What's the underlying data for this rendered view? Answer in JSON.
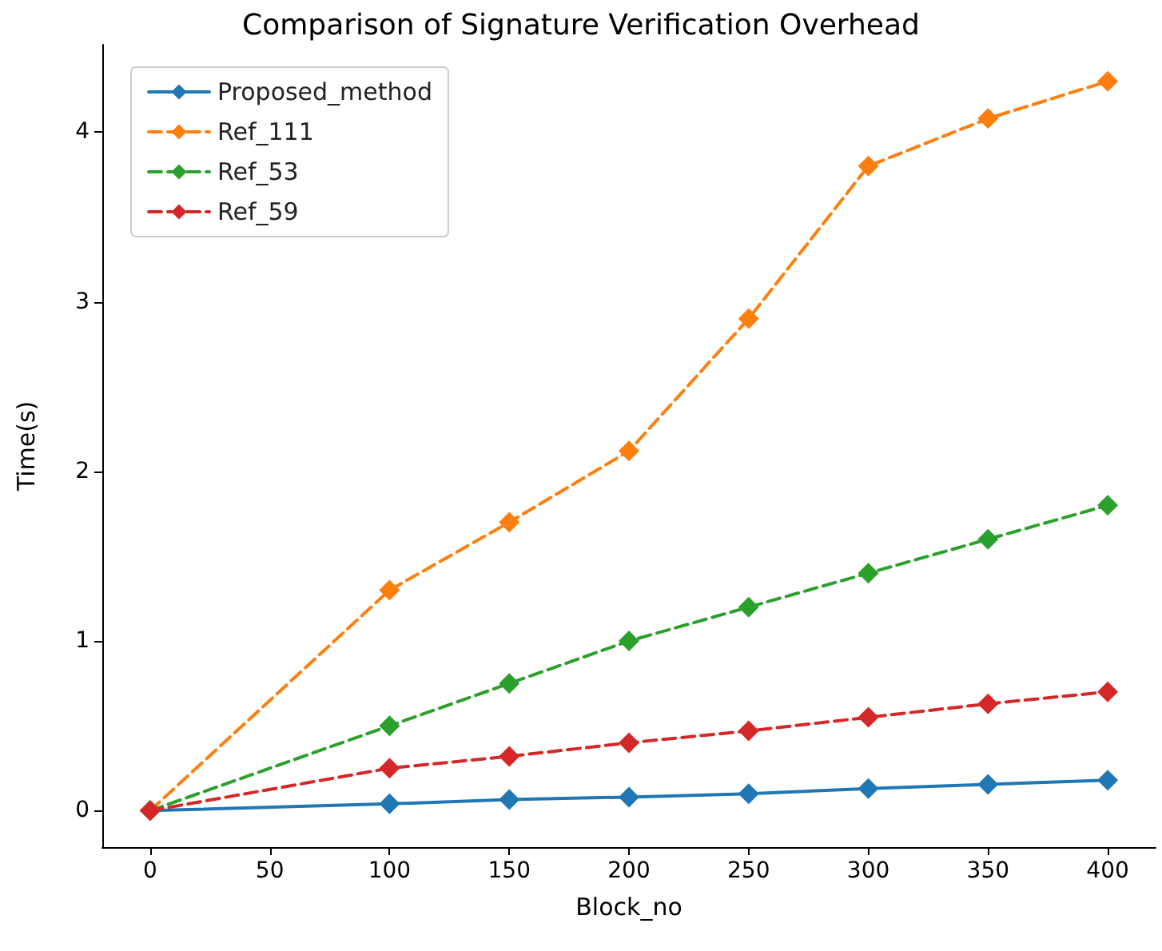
{
  "chart_data": {
    "type": "line",
    "title": "Comparison of Signature Verification Overhead",
    "xlabel": "Block_no",
    "ylabel": "Time(s)",
    "x": [
      0,
      100,
      150,
      200,
      250,
      300,
      350,
      400
    ],
    "series": [
      {
        "name": "Proposed_method",
        "color": "#1f77b4",
        "line_style": "solid",
        "values": [
          0,
          0.04,
          0.065,
          0.08,
          0.1,
          0.13,
          0.155,
          0.18
        ]
      },
      {
        "name": "Ref_111",
        "color": "#ff7f0e",
        "line_style": "dashed",
        "values": [
          0,
          1.3,
          1.7,
          2.12,
          2.9,
          3.8,
          4.08,
          4.3
        ]
      },
      {
        "name": "Ref_53",
        "color": "#2ca02c",
        "line_style": "dashed",
        "values": [
          0,
          0.5,
          0.75,
          1.0,
          1.2,
          1.4,
          1.6,
          1.8
        ]
      },
      {
        "name": "Ref_59",
        "color": "#d62728",
        "line_style": "dashed",
        "values": [
          0,
          0.25,
          0.32,
          0.4,
          0.47,
          0.55,
          0.63,
          0.7
        ]
      }
    ],
    "xlim": [
      -20,
      420
    ],
    "xticks": [
      0,
      50,
      100,
      150,
      200,
      250,
      300,
      350,
      400
    ],
    "ylim": [
      -0.215,
      4.515
    ],
    "yticks": [
      0,
      1,
      2,
      3,
      4
    ],
    "grid": false,
    "legend": "top left",
    "marker": "diamond"
  }
}
